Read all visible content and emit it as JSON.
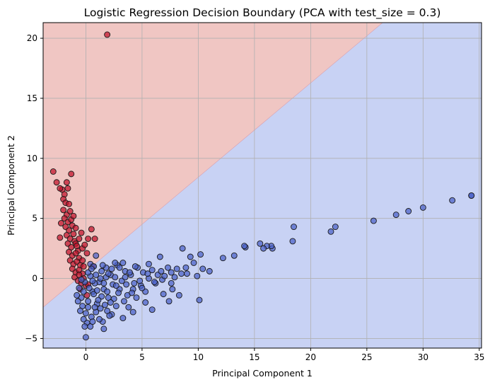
{
  "chart_data": {
    "type": "scatter",
    "title": "Logistic Regression Decision Boundary (PCA with test_size = 0.3)",
    "xlabel": "Principal Component 1",
    "ylabel": "Principal Component 2",
    "xlim": [
      -3.8,
      35.2
    ],
    "ylim": [
      -5.8,
      21.3
    ],
    "xticks": [
      0,
      5,
      10,
      15,
      20,
      25,
      30,
      35
    ],
    "yticks": [
      -5,
      0,
      5,
      10,
      15,
      20
    ],
    "grid": true,
    "decision_boundary": {
      "points": [
        [
          -3.8,
          -2.4
        ],
        [
          26.4,
          21.3
        ]
      ],
      "class_above": "red",
      "class_below": "blue"
    },
    "colors": {
      "red_region": "#f0c6c3",
      "blue_region": "#c8d2f4",
      "red_points": "#c0102a",
      "blue_points": "#4a5fc8",
      "grid": "#b0b0b0"
    },
    "series": [
      {
        "class": "red",
        "points": [
          [
            1.9,
            20.3
          ],
          [
            -2.9,
            8.9
          ],
          [
            -2.6,
            8.0
          ],
          [
            -1.3,
            8.7
          ],
          [
            -1.7,
            8.0
          ],
          [
            -2.1,
            7.4
          ],
          [
            -2.3,
            7.5
          ],
          [
            -1.9,
            7.0
          ],
          [
            -1.6,
            7.5
          ],
          [
            -2.0,
            6.6
          ],
          [
            -1.8,
            6.3
          ],
          [
            -1.5,
            6.2
          ],
          [
            -2.0,
            5.7
          ],
          [
            -1.7,
            5.3
          ],
          [
            -1.4,
            5.6
          ],
          [
            -1.9,
            5.0
          ],
          [
            -1.6,
            4.7
          ],
          [
            -1.3,
            4.9
          ],
          [
            -1.8,
            4.3
          ],
          [
            -1.5,
            4.0
          ],
          [
            -1.2,
            4.4
          ],
          [
            0.5,
            4.1
          ],
          [
            -1.7,
            3.6
          ],
          [
            -1.4,
            3.3
          ],
          [
            -1.1,
            3.7
          ],
          [
            -2.3,
            3.4
          ],
          [
            -1.6,
            2.9
          ],
          [
            -1.3,
            2.6
          ],
          [
            -1.0,
            3.1
          ],
          [
            -0.9,
            2.9
          ],
          [
            -0.6,
            3.3
          ],
          [
            0.8,
            3.3
          ],
          [
            -0.7,
            2.3
          ],
          [
            -1.5,
            2.2
          ],
          [
            -1.2,
            1.9
          ],
          [
            -0.9,
            2.1
          ],
          [
            -0.6,
            1.7
          ],
          [
            -1.4,
            1.5
          ],
          [
            -1.1,
            1.2
          ],
          [
            -0.8,
            1.4
          ],
          [
            -0.5,
            1.1
          ],
          [
            -0.3,
            1.5
          ],
          [
            -1.2,
            0.8
          ],
          [
            -0.9,
            0.5
          ],
          [
            -0.6,
            0.7
          ],
          [
            -0.3,
            0.4
          ],
          [
            0.1,
            2.1
          ],
          [
            0.2,
            3.3
          ],
          [
            -1.0,
            0.1
          ],
          [
            -0.7,
            -0.2
          ],
          [
            -0.4,
            -0.4
          ],
          [
            -0.2,
            0.0
          ],
          [
            0.0,
            -0.6
          ],
          [
            -0.5,
            -0.9
          ],
          [
            -0.8,
            2.7
          ],
          [
            -0.3,
            2.5
          ],
          [
            -0.4,
            3.8
          ],
          [
            -0.1,
            2.8
          ],
          [
            -1.1,
            5.2
          ],
          [
            -0.9,
            4.2
          ],
          [
            -2.2,
            4.6
          ],
          [
            -0.2,
            1.0
          ],
          [
            0.6,
            1.0
          ],
          [
            -0.6,
            0.3
          ],
          [
            0.2,
            -0.5
          ],
          [
            0.1,
            -1.4
          ]
        ]
      },
      {
        "class": "blue",
        "points": [
          [
            34.3,
            6.9
          ],
          [
            34.3,
            6.9
          ],
          [
            32.6,
            6.5
          ],
          [
            30.0,
            5.9
          ],
          [
            28.7,
            5.6
          ],
          [
            27.6,
            5.3
          ],
          [
            25.6,
            4.8
          ],
          [
            22.2,
            4.3
          ],
          [
            21.8,
            3.9
          ],
          [
            18.5,
            4.3
          ],
          [
            18.4,
            3.1
          ],
          [
            16.6,
            2.5
          ],
          [
            16.5,
            2.7
          ],
          [
            16.1,
            2.7
          ],
          [
            15.8,
            2.5
          ],
          [
            15.5,
            2.9
          ],
          [
            14.2,
            2.6
          ],
          [
            14.1,
            2.7
          ],
          [
            13.2,
            1.9
          ],
          [
            12.2,
            1.7
          ],
          [
            10.2,
            2.0
          ],
          [
            10.4,
            0.8
          ],
          [
            10.1,
            -1.8
          ],
          [
            9.6,
            1.3
          ],
          [
            9.3,
            1.8
          ],
          [
            8.6,
            2.5
          ],
          [
            8.5,
            0.4
          ],
          [
            8.1,
            0.8
          ],
          [
            7.6,
            0.5
          ],
          [
            7.3,
            0.9
          ],
          [
            6.8,
            -0.1
          ],
          [
            6.6,
            1.8
          ],
          [
            6.2,
            -0.4
          ],
          [
            5.9,
            0.7
          ],
          [
            5.6,
            1.2
          ],
          [
            5.3,
            -1.1
          ],
          [
            5.1,
            0.5
          ],
          [
            4.9,
            -0.6
          ],
          [
            4.6,
            0.9
          ],
          [
            4.2,
            -0.9
          ],
          [
            4.0,
            0.3
          ],
          [
            3.7,
            -1.4
          ],
          [
            3.5,
            0.6
          ],
          [
            3.2,
            -0.2
          ],
          [
            3.0,
            -0.9
          ],
          [
            2.8,
            1.1
          ],
          [
            2.6,
            1.3
          ],
          [
            2.4,
            -0.5
          ],
          [
            2.2,
            0.3
          ],
          [
            2.0,
            -1.6
          ],
          [
            1.8,
            0.1
          ],
          [
            1.6,
            -0.9
          ],
          [
            1.4,
            0.6
          ],
          [
            1.2,
            -0.3
          ],
          [
            1.0,
            -2.1
          ],
          [
            0.8,
            -0.4
          ],
          [
            0.6,
            -1.1
          ],
          [
            0.4,
            0.2
          ],
          [
            0.2,
            -1.9
          ],
          [
            0.0,
            -2.9
          ],
          [
            -0.2,
            -1.1
          ],
          [
            -0.4,
            -1.6
          ],
          [
            -0.6,
            -0.8
          ],
          [
            -0.7,
            -1.9
          ],
          [
            0.5,
            -3.2
          ],
          [
            0.0,
            -4.9
          ],
          [
            1.5,
            -3.6
          ],
          [
            1.6,
            -4.2
          ],
          [
            1.2,
            -3.4
          ],
          [
            2.3,
            -3.0
          ],
          [
            3.3,
            -3.3
          ],
          [
            4.2,
            -2.8
          ],
          [
            5.3,
            -2.0
          ],
          [
            7.4,
            -1.9
          ],
          [
            8.3,
            -1.4
          ],
          [
            5.9,
            -2.6
          ],
          [
            6.9,
            -1.3
          ],
          [
            7.7,
            -0.9
          ],
          [
            3.8,
            -2.4
          ],
          [
            2.7,
            -2.3
          ],
          [
            1.9,
            -2.7
          ],
          [
            0.9,
            -2.8
          ],
          [
            1.4,
            -1.5
          ],
          [
            2.5,
            -1.7
          ],
          [
            3.4,
            -1.9
          ],
          [
            4.5,
            -1.6
          ],
          [
            0.4,
            1.2
          ],
          [
            0.9,
            1.9
          ],
          [
            0.7,
            1.0
          ],
          [
            1.8,
            0.9
          ],
          [
            3.0,
            0.9
          ],
          [
            4.4,
            1.0
          ],
          [
            3.3,
            1.3
          ],
          [
            2.0,
            0.4
          ],
          [
            0.2,
            0.5
          ],
          [
            -0.1,
            -0.3
          ],
          [
            0.3,
            -0.8
          ],
          [
            0.7,
            -1.3
          ],
          [
            1.1,
            -1.8
          ],
          [
            1.7,
            -2.2
          ],
          [
            2.2,
            -2.0
          ],
          [
            2.9,
            -1.2
          ],
          [
            3.6,
            -0.5
          ],
          [
            4.8,
            -0.2
          ],
          [
            5.6,
            0.0
          ],
          [
            6.4,
            0.3
          ],
          [
            7.0,
            0.2
          ],
          [
            7.9,
            0.1
          ],
          [
            9.0,
            0.4
          ],
          [
            1.3,
            0.0
          ],
          [
            0.6,
            -0.2
          ],
          [
            -0.3,
            -2.3
          ],
          [
            0.1,
            -3.7
          ],
          [
            -0.1,
            -4.0
          ],
          [
            0.8,
            -2.4
          ],
          [
            1.9,
            -1.1
          ],
          [
            2.7,
            -0.6
          ],
          [
            4.1,
            -1.2
          ],
          [
            5.0,
            -0.8
          ],
          [
            6.1,
            -0.3
          ],
          [
            3.9,
            0.5
          ],
          [
            2.3,
            0.8
          ],
          [
            1.5,
            1.1
          ],
          [
            0.5,
            0.8
          ],
          [
            -0.4,
            -0.1
          ],
          [
            -0.8,
            -1.4
          ],
          [
            -0.5,
            -2.7
          ],
          [
            0.2,
            -2.4
          ],
          [
            1.0,
            -1.0
          ],
          [
            1.6,
            -0.4
          ],
          [
            2.6,
            0.1
          ],
          [
            3.5,
            0.1
          ],
          [
            4.3,
            -0.4
          ],
          [
            5.5,
            0.4
          ],
          [
            6.7,
            0.6
          ],
          [
            7.6,
            -0.4
          ],
          [
            8.9,
            0.9
          ],
          [
            9.9,
            0.2
          ],
          [
            11.0,
            0.6
          ],
          [
            0.9,
            0.3
          ],
          [
            1.3,
            -2.5
          ],
          [
            2.1,
            -3.1
          ],
          [
            -0.2,
            -3.4
          ],
          [
            0.4,
            -4.0
          ],
          [
            0.6,
            -3.6
          ]
        ]
      }
    ]
  }
}
